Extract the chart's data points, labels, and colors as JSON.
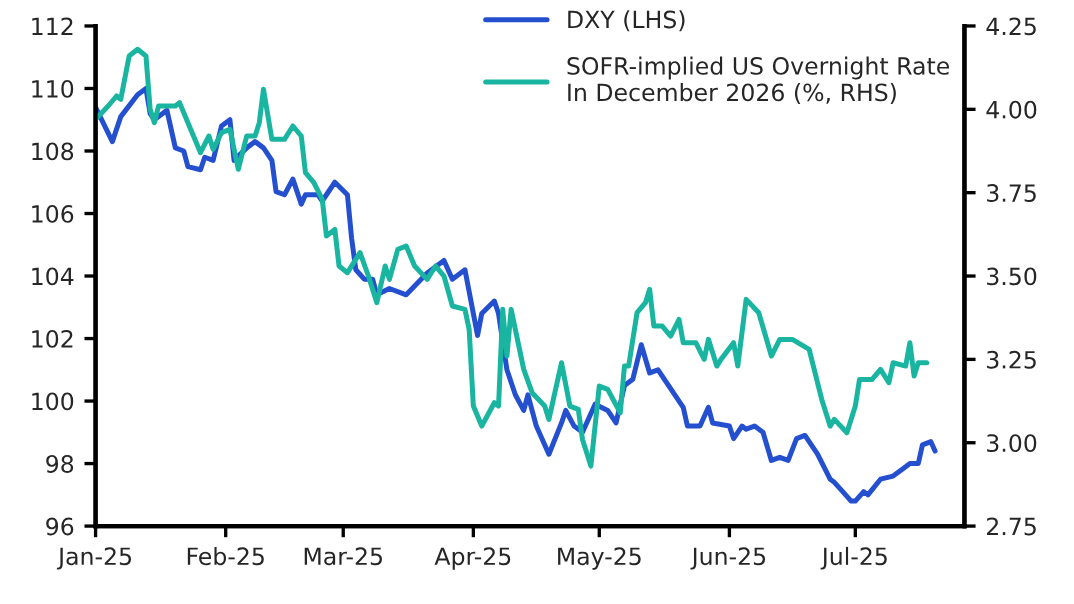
{
  "chart_data": {
    "type": "line",
    "series": [
      {
        "name": "DXY (LHS)",
        "color": "#2450d0",
        "axis": "y",
        "x": [
          "2025-01-01",
          "2025-01-05",
          "2025-01-07",
          "2025-01-11",
          "2025-01-13",
          "2025-01-14",
          "2025-01-15",
          "2025-01-18",
          "2025-01-20",
          "2025-01-22",
          "2025-01-23",
          "2025-01-26",
          "2025-01-27",
          "2025-01-29",
          "2025-01-31",
          "2025-02-02",
          "2025-02-03",
          "2025-02-06",
          "2025-02-08",
          "2025-02-10",
          "2025-02-12",
          "2025-02-13",
          "2025-02-15",
          "2025-02-17",
          "2025-02-19",
          "2025-02-20",
          "2025-02-23",
          "2025-02-24",
          "2025-02-27",
          "2025-03-02",
          "2025-03-03",
          "2025-03-04",
          "2025-03-06",
          "2025-03-08",
          "2025-03-09",
          "2025-03-12",
          "2025-03-16",
          "2025-03-21",
          "2025-03-25",
          "2025-03-27",
          "2025-03-30",
          "2025-04-02",
          "2025-04-03",
          "2025-04-06",
          "2025-04-07",
          "2025-04-09",
          "2025-04-11",
          "2025-04-13",
          "2025-04-14",
          "2025-04-16",
          "2025-04-19",
          "2025-04-22",
          "2025-04-23",
          "2025-04-25",
          "2025-04-27",
          "2025-04-30",
          "2025-05-03",
          "2025-05-05",
          "2025-05-07",
          "2025-05-09",
          "2025-05-11",
          "2025-05-13",
          "2025-05-15",
          "2025-05-17",
          "2025-05-21",
          "2025-05-22",
          "2025-05-25",
          "2025-05-27",
          "2025-05-28",
          "2025-06-01",
          "2025-06-02",
          "2025-06-04",
          "2025-06-05",
          "2025-06-07",
          "2025-06-09",
          "2025-06-11",
          "2025-06-13",
          "2025-06-15",
          "2025-06-17",
          "2025-06-19",
          "2025-06-22",
          "2025-06-25",
          "2025-06-26",
          "2025-06-28",
          "2025-06-30",
          "2025-07-01",
          "2025-07-03",
          "2025-07-04",
          "2025-07-07",
          "2025-07-10",
          "2025-07-13",
          "2025-07-14",
          "2025-07-16",
          "2025-07-17",
          "2025-07-19",
          "2025-07-20"
        ],
        "values": [
          109.4,
          108.3,
          109.1,
          109.8,
          110.0,
          109.2,
          109.0,
          109.3,
          108.1,
          108.0,
          107.5,
          107.4,
          107.8,
          107.7,
          108.8,
          109.0,
          107.7,
          108.1,
          108.3,
          108.1,
          107.7,
          106.7,
          106.6,
          107.1,
          106.3,
          106.6,
          106.6,
          106.4,
          107.0,
          106.6,
          105.2,
          104.2,
          103.9,
          103.9,
          103.4,
          103.6,
          103.4,
          104.1,
          104.5,
          103.9,
          104.2,
          102.1,
          102.8,
          103.2,
          102.8,
          101.0,
          100.2,
          99.7,
          100.2,
          99.2,
          98.3,
          99.3,
          99.7,
          99.2,
          99.0,
          99.9,
          99.7,
          99.3,
          100.5,
          100.7,
          101.8,
          100.9,
          101.0,
          100.6,
          99.8,
          99.2,
          99.2,
          99.8,
          99.3,
          99.2,
          98.8,
          99.2,
          99.1,
          99.2,
          99.0,
          98.1,
          98.2,
          98.1,
          98.8,
          98.9,
          98.3,
          97.5,
          97.4,
          97.1,
          96.8,
          96.8,
          97.1,
          97.0,
          97.5,
          97.6,
          97.9,
          98.0,
          98.0,
          98.6,
          98.7,
          98.4
        ]
      },
      {
        "name": "SOFR-implied US Overnight Rate\nIn December 2026 (%, RHS)",
        "color": "#1ab5a0",
        "axis": "y2",
        "x": [
          "2025-01-01",
          "2025-01-04",
          "2025-01-06",
          "2025-01-07",
          "2025-01-09",
          "2025-01-11",
          "2025-01-13",
          "2025-01-14",
          "2025-01-15",
          "2025-01-16",
          "2025-01-20",
          "2025-01-21",
          "2025-01-23",
          "2025-01-26",
          "2025-01-28",
          "2025-01-29",
          "2025-01-31",
          "2025-02-02",
          "2025-02-04",
          "2025-02-06",
          "2025-02-08",
          "2025-02-09",
          "2025-02-10",
          "2025-02-12",
          "2025-02-15",
          "2025-02-17",
          "2025-02-19",
          "2025-02-20",
          "2025-02-22",
          "2025-02-24",
          "2025-02-25",
          "2025-02-27",
          "2025-02-28",
          "2025-03-02",
          "2025-03-05",
          "2025-03-07",
          "2025-03-09",
          "2025-03-11",
          "2025-03-12",
          "2025-03-14",
          "2025-03-16",
          "2025-03-18",
          "2025-03-21",
          "2025-03-23",
          "2025-03-25",
          "2025-03-27",
          "2025-03-30",
          "2025-03-31",
          "2025-04-01",
          "2025-04-03",
          "2025-04-06",
          "2025-04-07",
          "2025-04-08",
          "2025-04-09",
          "2025-04-10",
          "2025-04-12",
          "2025-04-13",
          "2025-04-15",
          "2025-04-18",
          "2025-04-19",
          "2025-04-22",
          "2025-04-24",
          "2025-04-26",
          "2025-04-27",
          "2025-04-29",
          "2025-05-01",
          "2025-05-03",
          "2025-05-06",
          "2025-05-07",
          "2025-05-08",
          "2025-05-10",
          "2025-05-12",
          "2025-05-13",
          "2025-05-14",
          "2025-05-16",
          "2025-05-18",
          "2025-05-20",
          "2025-05-21",
          "2025-05-24",
          "2025-05-26",
          "2025-05-27",
          "2025-05-29",
          "2025-05-30",
          "2025-06-02",
          "2025-06-03",
          "2025-06-05",
          "2025-06-08",
          "2025-06-11",
          "2025-06-13",
          "2025-06-16",
          "2025-06-20",
          "2025-06-23",
          "2025-06-25",
          "2025-06-26",
          "2025-06-29",
          "2025-07-01",
          "2025-07-02",
          "2025-07-05",
          "2025-07-07",
          "2025-07-09",
          "2025-07-10",
          "2025-07-13",
          "2025-07-14",
          "2025-07-15",
          "2025-07-16",
          "2025-07-18"
        ],
        "values": [
          3.97,
          4.01,
          4.04,
          4.03,
          4.16,
          4.18,
          4.16,
          4.0,
          3.96,
          4.01,
          4.01,
          4.02,
          3.96,
          3.87,
          3.92,
          3.88,
          3.93,
          3.94,
          3.82,
          3.92,
          3.92,
          3.96,
          4.06,
          3.91,
          3.91,
          3.95,
          3.92,
          3.81,
          3.78,
          3.73,
          3.62,
          3.64,
          3.53,
          3.51,
          3.57,
          3.5,
          3.42,
          3.53,
          3.49,
          3.58,
          3.59,
          3.53,
          3.49,
          3.53,
          3.5,
          3.41,
          3.4,
          3.34,
          3.11,
          3.05,
          3.12,
          3.11,
          3.4,
          3.26,
          3.4,
          3.28,
          3.22,
          3.15,
          3.11,
          3.07,
          3.24,
          3.11,
          3.1,
          3.01,
          2.93,
          3.17,
          3.16,
          3.09,
          3.23,
          3.23,
          3.39,
          3.42,
          3.46,
          3.35,
          3.35,
          3.32,
          3.37,
          3.3,
          3.3,
          3.25,
          3.31,
          3.23,
          3.25,
          3.3,
          3.23,
          3.43,
          3.39,
          3.26,
          3.31,
          3.31,
          3.28,
          3.13,
          3.05,
          3.07,
          3.03,
          3.11,
          3.19,
          3.19,
          3.22,
          3.18,
          3.24,
          3.23,
          3.3,
          3.2,
          3.24,
          3.24
        ]
      }
    ],
    "xlim": [
      "2025-01-01",
      "2025-07-27"
    ],
    "xticks": [
      {
        "value": "2025-01-01",
        "label": "Jan-25"
      },
      {
        "value": "2025-02-01",
        "label": "Feb-25"
      },
      {
        "value": "2025-03-01",
        "label": "Mar-25"
      },
      {
        "value": "2025-04-01",
        "label": "Apr-25"
      },
      {
        "value": "2025-05-01",
        "label": "May-25"
      },
      {
        "value": "2025-06-01",
        "label": "Jun-25"
      },
      {
        "value": "2025-07-01",
        "label": "Jul-25"
      }
    ],
    "ylim": [
      96,
      112
    ],
    "yticks": [
      96,
      98,
      100,
      102,
      104,
      106,
      108,
      110,
      112
    ],
    "y2lim": [
      2.75,
      4.25
    ],
    "y2ticks": [
      {
        "value": 2.75,
        "label": "2.75"
      },
      {
        "value": 3.0,
        "label": "3.00"
      },
      {
        "value": 3.25,
        "label": "3.25"
      },
      {
        "value": 3.5,
        "label": "3.50"
      },
      {
        "value": 3.75,
        "label": "3.75"
      },
      {
        "value": 4.0,
        "label": "4.00"
      },
      {
        "value": 4.25,
        "label": "4.25"
      }
    ],
    "grid": false,
    "legend": "top right",
    "marker": "none",
    "line_style": "solid"
  }
}
